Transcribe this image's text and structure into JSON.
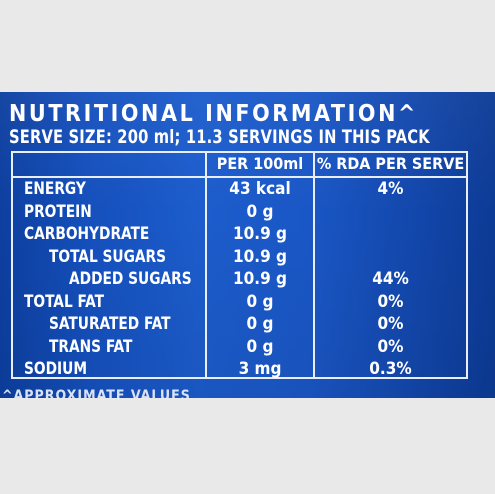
{
  "label": {
    "heading": "NUTRITIONAL INFORMATION^",
    "serve_size": "SERVE SIZE: 200 ml; 11.3 SERVINGS IN THIS PACK",
    "columns": [
      "",
      "PER 100ml",
      "% RDA PER SERVE"
    ],
    "rows": [
      {
        "nutrient": "ENERGY",
        "indent": 0,
        "per100": "43 kcal",
        "rda": "4%"
      },
      {
        "nutrient": "PROTEIN",
        "indent": 0,
        "per100": "0 g",
        "rda": ""
      },
      {
        "nutrient": "CARBOHYDRATE",
        "indent": 0,
        "per100": "10.9 g",
        "rda": ""
      },
      {
        "nutrient": "TOTAL SUGARS",
        "indent": 1,
        "per100": "10.9 g",
        "rda": ""
      },
      {
        "nutrient": "ADDED SUGARS",
        "indent": 2,
        "per100": "10.9 g",
        "rda": "44%"
      },
      {
        "nutrient": "TOTAL FAT",
        "indent": 0,
        "per100": "0 g",
        "rda": "0%"
      },
      {
        "nutrient": "SATURATED FAT",
        "indent": 1,
        "per100": "0 g",
        "rda": "0%"
      },
      {
        "nutrient": "TRANS FAT",
        "indent": 1,
        "per100": "0 g",
        "rda": "0%"
      },
      {
        "nutrient": "SODIUM",
        "indent": 0,
        "per100": "3 mg",
        "rda": "0.3%"
      }
    ],
    "footnote": "^APPROXIMATE VALUES",
    "colors": {
      "background": "#1a57c6",
      "text": "#ffffff",
      "rule": "#e8eefc",
      "surround": "#e9e9e9"
    }
  }
}
